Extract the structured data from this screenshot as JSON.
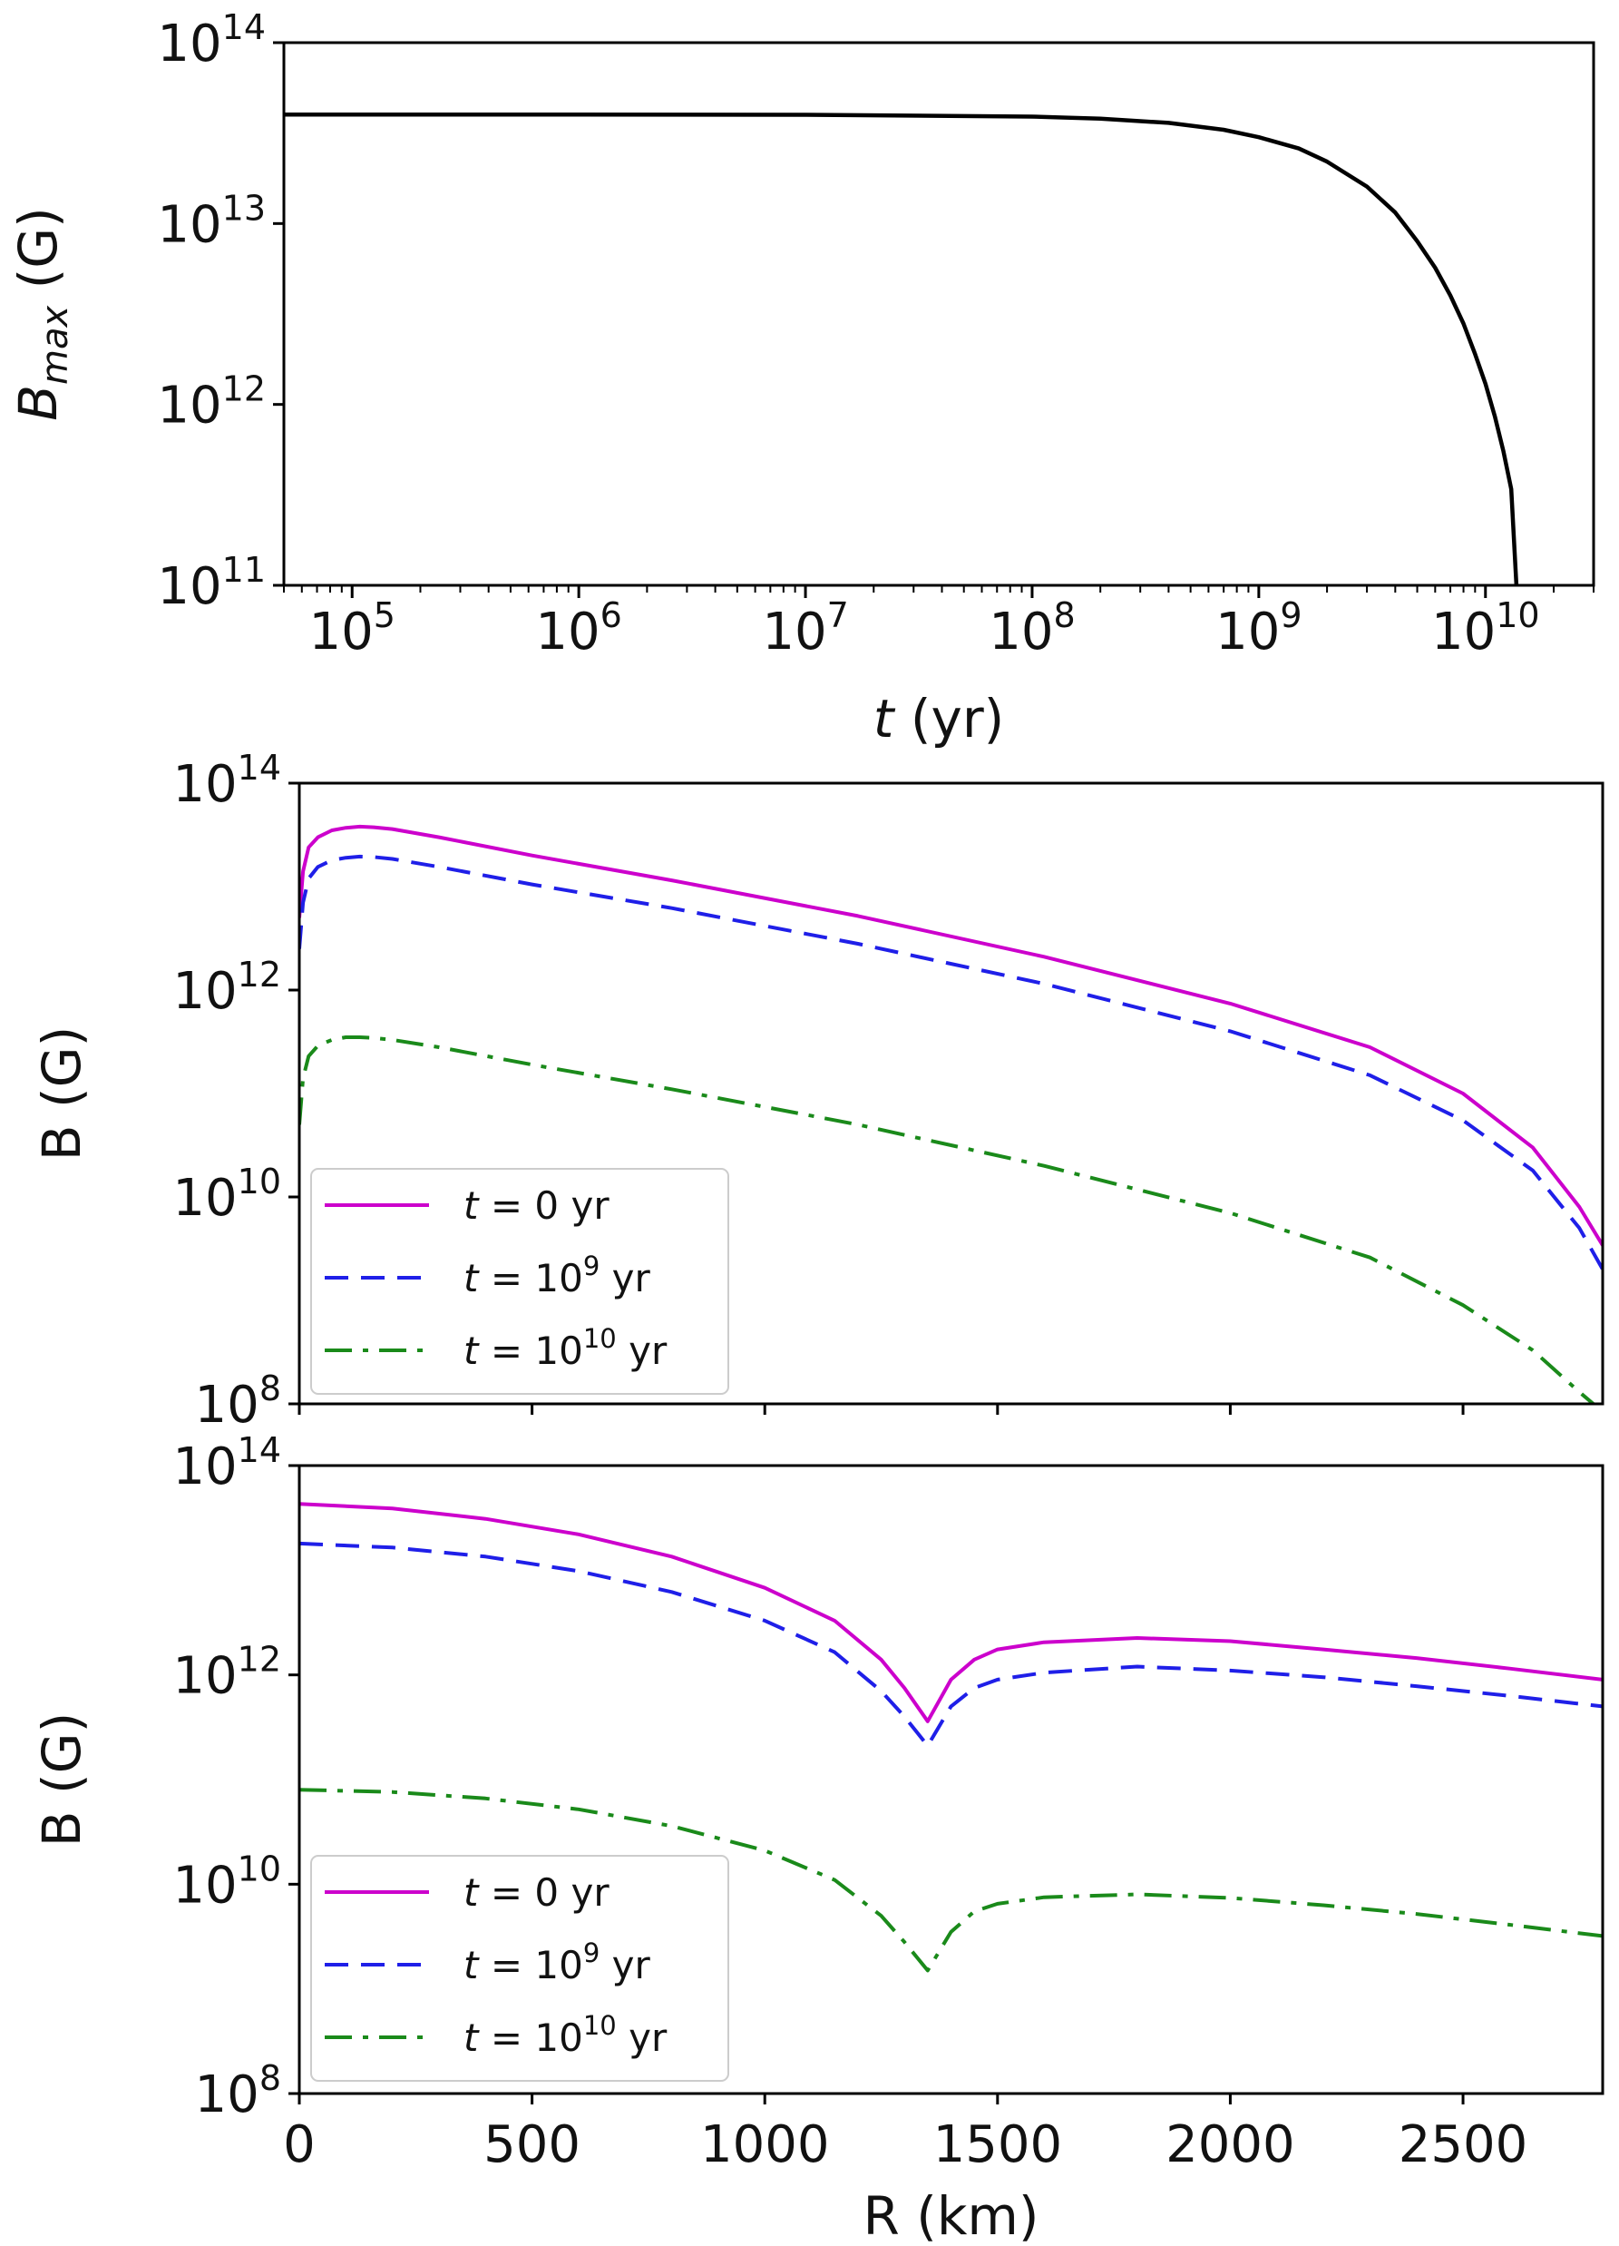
{
  "chart_data": [
    {
      "type": "line",
      "panel": "top",
      "xscale": "log",
      "yscale": "log",
      "xlabel": "t (yr)",
      "ylabel": "B_max (G)",
      "xlim": [
        50000,
        30000000000
      ],
      "ylim": [
        100000000000.0,
        100000000000000.0
      ],
      "xticks": [
        {
          "base": "10",
          "exp": "5",
          "value": 100000
        },
        {
          "base": "10",
          "exp": "6",
          "value": 1000000
        },
        {
          "base": "10",
          "exp": "7",
          "value": 10000000
        },
        {
          "base": "10",
          "exp": "8",
          "value": 100000000
        },
        {
          "base": "10",
          "exp": "9",
          "value": 1000000000
        },
        {
          "base": "10",
          "exp": "10",
          "value": 10000000000
        }
      ],
      "yticks": [
        {
          "base": "10",
          "exp": "11",
          "value": 100000000000.0
        },
        {
          "base": "10",
          "exp": "12",
          "value": 1000000000000.0
        },
        {
          "base": "10",
          "exp": "13",
          "value": 10000000000000.0
        },
        {
          "base": "10",
          "exp": "14",
          "value": 100000000000000.0
        }
      ],
      "series": [
        {
          "color": "#000000",
          "dash": "solid",
          "x": [
            50000,
            1000000,
            10000000,
            100000000,
            200000000,
            400000000,
            700000000,
            1000000000,
            1500000000,
            2000000000,
            3000000000,
            4000000000,
            5000000000,
            6000000000,
            7000000000,
            8000000000,
            9000000000,
            10000000000,
            11000000000,
            12000000000,
            13000000000,
            13700000000
          ],
          "y": [
            40000000000000.0,
            40000000000000.0,
            39900000000000.0,
            39000000000000.0,
            38000000000000.0,
            36000000000000.0,
            33000000000000.0,
            30000000000000.0,
            26000000000000.0,
            22000000000000.0,
            16000000000000.0,
            11500000000000.0,
            8000000000000.0,
            5700000000000.0,
            4000000000000.0,
            2800000000000.0,
            1900000000000.0,
            1300000000000.0,
            860000000000.0,
            550000000000.0,
            340000000000.0,
            100000000000.0
          ]
        }
      ]
    },
    {
      "type": "line",
      "panel": "middle",
      "xscale": "linear",
      "yscale": "log",
      "xlabel": "",
      "ylabel": "B (G)",
      "xlim": [
        0,
        2800
      ],
      "ylim": [
        100000000.0,
        100000000000000.0
      ],
      "yticks": [
        {
          "base": "10",
          "exp": "8",
          "value": 100000000.0
        },
        {
          "base": "10",
          "exp": "10",
          "value": 10000000000.0
        },
        {
          "base": "10",
          "exp": "12",
          "value": 1000000000000.0
        },
        {
          "base": "10",
          "exp": "14",
          "value": 100000000000000.0
        }
      ],
      "legend_position": "lower-left",
      "series": [
        {
          "name_prefix": "t = ",
          "name_base": "0",
          "name_exp": "",
          "name_suffix": " yr",
          "color": "#cc00cc",
          "dash": "solid",
          "x": [
            0,
            8,
            20,
            40,
            70,
            100,
            130,
            160,
            200,
            300,
            500,
            800,
            1200,
            1600,
            2000,
            2300,
            2500,
            2650,
            2750,
            2800
          ],
          "y": [
            5000000000000.0,
            14000000000000.0,
            24000000000000.0,
            30000000000000.0,
            35000000000000.0,
            37000000000000.0,
            38000000000000.0,
            37500000000000.0,
            36000000000000.0,
            30000000000000.0,
            20000000000000.0,
            11500000000000.0,
            5200000000000.0,
            2100000000000.0,
            740000000000.0,
            280000000000.0,
            100000000000.0,
            30000000000.0,
            8000000000.0,
            3400000000.0
          ]
        },
        {
          "name_prefix": "t = ",
          "name_base": "10",
          "name_exp": "9",
          "name_suffix": " yr",
          "color": "#1f1fe8",
          "dash": "dashed",
          "x": [
            0,
            8,
            20,
            40,
            70,
            100,
            130,
            160,
            200,
            300,
            500,
            800,
            1200,
            1600,
            2000,
            2300,
            2500,
            2650,
            2750,
            2800
          ],
          "y": [
            2500000000000.0,
            7000000000000.0,
            12000000000000.0,
            15500000000000.0,
            18000000000000.0,
            19000000000000.0,
            19500000000000.0,
            19300000000000.0,
            18500000000000.0,
            15500000000000.0,
            10500000000000.0,
            6200000000000.0,
            2800000000000.0,
            1150000000000.0,
            400000000000.0,
            150000000000.0,
            55000000000.0,
            18000000000.0,
            5000000000.0,
            2000000000.0
          ]
        },
        {
          "name_prefix": "t = ",
          "name_base": "10",
          "name_exp": "10",
          "name_suffix": " yr",
          "color": "#1a8a1a",
          "dash": "dashdot",
          "x": [
            0,
            8,
            20,
            40,
            70,
            100,
            130,
            160,
            200,
            300,
            500,
            800,
            1200,
            1600,
            2000,
            2300,
            2500,
            2650,
            2750,
            2780
          ],
          "y": [
            50000000000.0,
            140000000000.0,
            230000000000.0,
            290000000000.0,
            330000000000.0,
            350000000000.0,
            350000000000.0,
            345000000000.0,
            330000000000.0,
            280000000000.0,
            190000000000.0,
            110000000000.0,
            50000000000.0,
            20000000000.0,
            7000000000.0,
            2600000000.0,
            900000000.0,
            330000000.0,
            130000000.0,
            100000000.0
          ]
        }
      ]
    },
    {
      "type": "line",
      "panel": "bottom",
      "xscale": "linear",
      "yscale": "log",
      "xlabel": "R (km)",
      "ylabel": "B (G)",
      "xlim": [
        0,
        2800
      ],
      "ylim": [
        100000000.0,
        100000000000000.0
      ],
      "xticks": [
        "0",
        "500",
        "1000",
        "1500",
        "2000",
        "2500"
      ],
      "yticks": [
        {
          "base": "10",
          "exp": "8",
          "value": 100000000.0
        },
        {
          "base": "10",
          "exp": "10",
          "value": 10000000000.0
        },
        {
          "base": "10",
          "exp": "12",
          "value": 1000000000000.0
        },
        {
          "base": "10",
          "exp": "14",
          "value": 100000000000000.0
        }
      ],
      "legend_position": "lower-left",
      "series": [
        {
          "name_prefix": "t = ",
          "name_base": "0",
          "name_exp": "",
          "name_suffix": " yr",
          "color": "#cc00cc",
          "dash": "solid",
          "x": [
            0,
            200,
            400,
            600,
            800,
            1000,
            1150,
            1250,
            1300,
            1350,
            1400,
            1450,
            1500,
            1600,
            1800,
            2000,
            2200,
            2400,
            2600,
            2800
          ],
          "y": [
            43000000000000.0,
            39000000000000.0,
            31000000000000.0,
            22000000000000.0,
            13500000000000.0,
            6800000000000.0,
            3300000000000.0,
            1400000000000.0,
            750000000000.0,
            360000000000.0,
            900000000000.0,
            1400000000000.0,
            1750000000000.0,
            2050000000000.0,
            2250000000000.0,
            2100000000000.0,
            1750000000000.0,
            1450000000000.0,
            1150000000000.0,
            900000000000.0
          ]
        },
        {
          "name_prefix": "t = ",
          "name_base": "10",
          "name_exp": "9",
          "name_suffix": " yr",
          "color": "#1f1fe8",
          "dash": "dashed",
          "x": [
            0,
            200,
            400,
            600,
            800,
            1000,
            1150,
            1250,
            1300,
            1350,
            1400,
            1450,
            1500,
            1600,
            1800,
            2000,
            2200,
            2400,
            2600,
            2800
          ],
          "y": [
            18000000000000.0,
            16500000000000.0,
            13500000000000.0,
            9800000000000.0,
            6200000000000.0,
            3300000000000.0,
            1650000000000.0,
            700000000000.0,
            400000000000.0,
            210000000000.0,
            500000000000.0,
            750000000000.0,
            900000000000.0,
            1050000000000.0,
            1200000000000.0,
            1100000000000.0,
            950000000000.0,
            780000000000.0,
            630000000000.0,
            500000000000.0
          ]
        },
        {
          "name_prefix": "t = ",
          "name_base": "10",
          "name_exp": "10",
          "name_suffix": " yr",
          "color": "#1a8a1a",
          "dash": "dashdot",
          "x": [
            0,
            200,
            400,
            600,
            800,
            1000,
            1150,
            1250,
            1300,
            1350,
            1400,
            1450,
            1500,
            1600,
            1800,
            2000,
            2200,
            2400,
            2600,
            2800
          ],
          "y": [
            80000000000.0,
            76000000000.0,
            66000000000.0,
            52000000000.0,
            36000000000.0,
            21000000000.0,
            11000000000.0,
            5000000000.0,
            2800000000.0,
            1500000000.0,
            3500000000.0,
            5500000000.0,
            6500000000.0,
            7500000000.0,
            8000000000.0,
            7400000000.0,
            6300000000.0,
            5200000000.0,
            4100000000.0,
            3200000000.0
          ]
        }
      ]
    }
  ]
}
